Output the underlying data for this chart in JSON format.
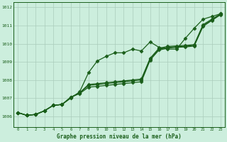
{
  "background_color": "#cceedd",
  "grid_color": "#aaccbb",
  "line_color": "#1a5e1a",
  "marker_color": "#1a5e1a",
  "xlabel": "Graphe pression niveau de la mer (hPa)",
  "xlim": [
    -0.5,
    23.5
  ],
  "ylim": [
    1005.4,
    1012.3
  ],
  "yticks": [
    1006,
    1007,
    1008,
    1009,
    1010,
    1011,
    1012
  ],
  "xticks": [
    0,
    1,
    2,
    3,
    4,
    5,
    6,
    7,
    8,
    9,
    10,
    11,
    12,
    13,
    14,
    15,
    16,
    17,
    18,
    19,
    20,
    21,
    22,
    23
  ],
  "series": [
    {
      "y": [
        1006.2,
        1006.05,
        1006.1,
        1006.3,
        1006.6,
        1006.65,
        1007.0,
        1007.35,
        1008.4,
        1009.05,
        1009.3,
        1009.5,
        1009.5,
        1009.7,
        1009.6,
        1010.1,
        1009.8,
        1009.7,
        1009.7,
        1010.3,
        1010.85,
        1011.35,
        1011.5,
        1011.65
      ],
      "marker": "D",
      "markersize": 2.5,
      "lw": 0.9
    },
    {
      "y": [
        1006.2,
        1006.05,
        1006.1,
        1006.3,
        1006.6,
        1006.65,
        1007.05,
        1007.3,
        1007.75,
        1007.8,
        1007.85,
        1007.9,
        1007.95,
        1008.0,
        1008.05,
        1009.2,
        1009.75,
        1009.85,
        1009.88,
        1009.9,
        1009.95,
        1011.05,
        1011.35,
        1011.65
      ],
      "marker": "D",
      "markersize": 2.5,
      "lw": 0.9
    },
    {
      "y": [
        1006.2,
        1006.05,
        1006.1,
        1006.3,
        1006.6,
        1006.65,
        1007.05,
        1007.25,
        1007.6,
        1007.65,
        1007.7,
        1007.75,
        1007.8,
        1007.85,
        1007.9,
        1009.1,
        1009.65,
        1009.75,
        1009.8,
        1009.82,
        1009.87,
        1010.95,
        1011.28,
        1011.6
      ],
      "marker": "D",
      "markersize": 2.5,
      "lw": 0.9
    },
    {
      "y": [
        1006.2,
        1006.05,
        1006.1,
        1006.3,
        1006.6,
        1006.65,
        1007.05,
        1007.28,
        1007.7,
        1007.75,
        1007.8,
        1007.85,
        1007.9,
        1007.95,
        1008.0,
        1009.15,
        1009.7,
        1009.8,
        1009.84,
        1009.86,
        1009.91,
        1011.0,
        1011.3,
        1011.62
      ],
      "marker": "D",
      "markersize": 2.5,
      "lw": 0.9
    }
  ]
}
